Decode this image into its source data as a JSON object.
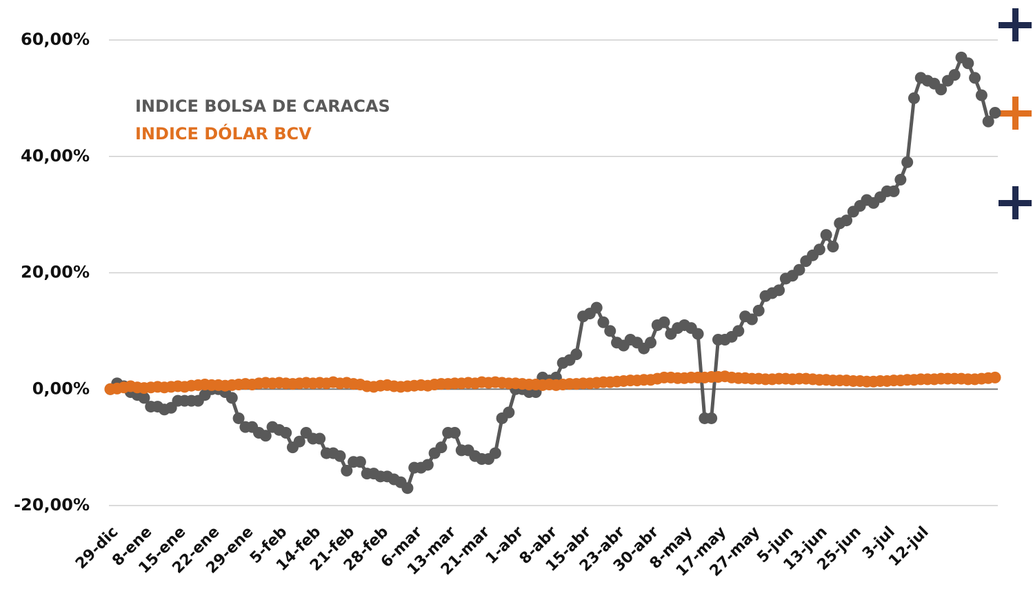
{
  "chart_data": {
    "type": "line",
    "categories": [
      "29-dic",
      null,
      null,
      null,
      null,
      "8-ene",
      null,
      null,
      null,
      null,
      "15-ene",
      null,
      null,
      null,
      null,
      "22-ene",
      null,
      null,
      null,
      null,
      "29-ene",
      null,
      null,
      null,
      null,
      "5-feb",
      null,
      null,
      null,
      null,
      "14-feb",
      null,
      null,
      null,
      null,
      "21-feb",
      null,
      null,
      null,
      null,
      "28-feb",
      null,
      null,
      null,
      null,
      "6-mar",
      null,
      null,
      null,
      null,
      "13-mar",
      null,
      null,
      null,
      null,
      "21-mar",
      null,
      null,
      null,
      null,
      "1-abr",
      null,
      null,
      null,
      null,
      "8-abr",
      null,
      null,
      null,
      null,
      "15-abr",
      null,
      null,
      null,
      null,
      "23-abr",
      null,
      null,
      null,
      null,
      "30-abr",
      null,
      null,
      null,
      null,
      "8-may",
      null,
      null,
      null,
      null,
      "17-may",
      null,
      null,
      null,
      null,
      "27-may",
      null,
      null,
      null,
      null,
      "5-jun",
      null,
      null,
      null,
      null,
      "13-jun",
      null,
      null,
      null,
      null,
      "25-jun",
      null,
      null,
      null,
      null,
      "3-jul",
      null,
      null,
      null,
      null,
      "12-jul",
      null,
      null,
      null,
      null,
      null,
      null,
      null,
      null,
      null,
      null,
      null
    ],
    "series": [
      {
        "name": "INDICE BOLSA DE CARACAS",
        "color": "#595959",
        "values": [
          0,
          1,
          0.5,
          -0.5,
          -1,
          -1.5,
          -3,
          -3,
          -3.5,
          -3.2,
          -2,
          -2,
          -2,
          -2,
          -1,
          0,
          0,
          -0.5,
          -1.5,
          -5,
          -6.5,
          -6.5,
          -7.5,
          -8,
          -6.5,
          -7,
          -7.5,
          -10,
          -9,
          -7.5,
          -8.5,
          -8.5,
          -11,
          -11,
          -11.5,
          -14,
          -12.5,
          -12.5,
          -14.5,
          -14.5,
          -15,
          -15,
          -15.5,
          -16,
          -17,
          -13.5,
          -13.5,
          -13,
          -11,
          -10,
          -7.5,
          -7.5,
          -10.5,
          -10.5,
          -11.5,
          -12,
          -12,
          -11,
          -5,
          -4,
          0,
          0,
          -0.5,
          -0.5,
          2,
          1.5,
          2,
          4.5,
          5,
          6,
          12.5,
          13,
          14,
          11.5,
          10,
          8,
          7.5,
          8.5,
          8,
          7,
          8,
          11,
          11.5,
          9.5,
          10.5,
          11,
          10.5,
          9.5,
          -5,
          -5,
          8.5,
          8.5,
          9,
          10,
          12.5,
          12,
          13.5,
          16,
          16.5,
          17,
          19,
          19.5,
          20.5,
          22,
          23,
          24,
          26.5,
          24.5,
          28.5,
          29,
          30.5,
          31.5,
          32.5,
          32,
          33,
          34,
          34,
          36,
          39,
          50,
          53.5,
          53,
          52.5,
          51.5,
          53,
          54,
          57,
          56,
          53.5,
          50.5,
          46,
          47.5
        ]
      },
      {
        "name": "INDICE DÓLAR BCV",
        "color": "#e07020",
        "values": [
          0,
          0.1,
          0.3,
          0.5,
          0.3,
          0.2,
          0.3,
          0.4,
          0.3,
          0.4,
          0.5,
          0.4,
          0.6,
          0.7,
          0.8,
          0.7,
          0.7,
          0.6,
          0.7,
          0.8,
          0.9,
          0.8,
          1,
          1.1,
          1,
          1.1,
          1,
          0.9,
          1,
          1.1,
          1,
          1.1,
          1,
          1.2,
          1,
          1.1,
          0.9,
          0.8,
          0.5,
          0.4,
          0.6,
          0.7,
          0.5,
          0.4,
          0.5,
          0.6,
          0.7,
          0.6,
          0.8,
          0.9,
          0.9,
          1,
          1,
          1.1,
          1,
          1.2,
          1.1,
          1.2,
          1.1,
          1,
          1,
          0.9,
          0.8,
          0.8,
          0.7,
          0.8,
          0.7,
          0.8,
          0.9,
          0.9,
          1,
          1,
          1.1,
          1.2,
          1.2,
          1.3,
          1.4,
          1.5,
          1.5,
          1.6,
          1.6,
          1.8,
          2,
          2,
          1.9,
          1.9,
          2,
          2,
          2,
          2.1,
          2.1,
          2.2,
          2,
          1.9,
          1.9,
          1.8,
          1.8,
          1.7,
          1.7,
          1.8,
          1.8,
          1.7,
          1.8,
          1.8,
          1.7,
          1.6,
          1.6,
          1.5,
          1.5,
          1.5,
          1.4,
          1.4,
          1.3,
          1.3,
          1.4,
          1.4,
          1.5,
          1.5,
          1.6,
          1.6,
          1.7,
          1.7,
          1.7,
          1.8,
          1.8,
          1.8,
          1.8,
          1.7,
          1.7,
          1.8,
          1.9,
          2
        ]
      }
    ],
    "ylim": [
      -20,
      60
    ],
    "yticks": [
      {
        "value": -20,
        "label": "-20,00%"
      },
      {
        "value": 0,
        "label": "0,00%"
      },
      {
        "value": 20,
        "label": "20,00%"
      },
      {
        "value": 40,
        "label": "40,00%"
      },
      {
        "value": 60,
        "label": "60,00%"
      }
    ],
    "grid": true,
    "legend": "upper left"
  }
}
